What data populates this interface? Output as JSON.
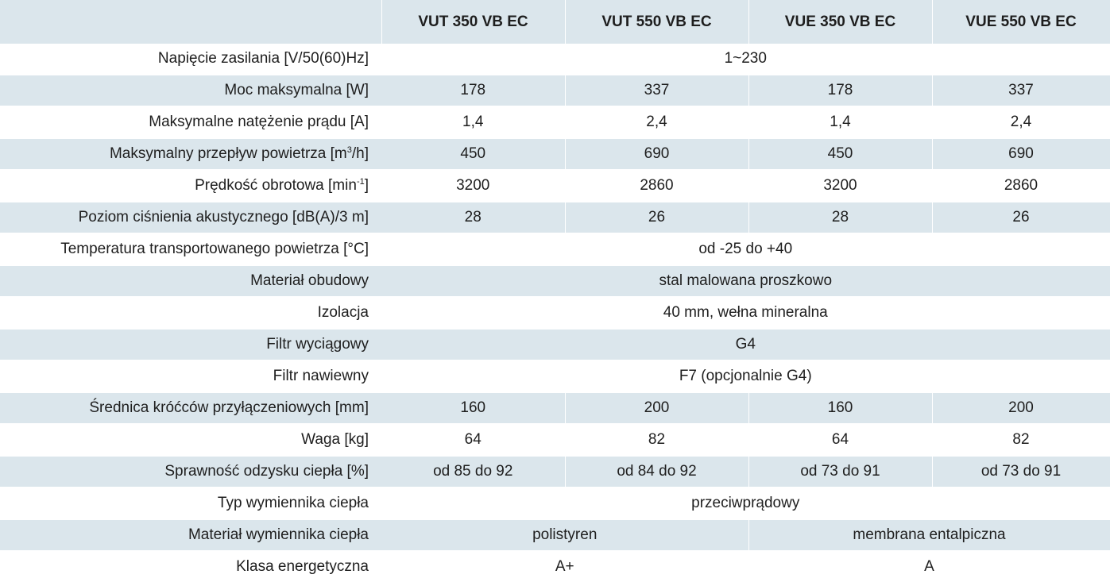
{
  "header": {
    "corner": "",
    "models": [
      "VUT 350 VB EC",
      "VUT 550 VB EC",
      "VUE 350 VB EC",
      "VUE 550 VB EC"
    ]
  },
  "rows": [
    {
      "label": "Napięcie zasilania [V/50(60)Hz]",
      "label_parts": null,
      "cells": [
        {
          "text": "1~230",
          "span": 4
        }
      ]
    },
    {
      "label": "Moc maksymalna [W]",
      "label_parts": null,
      "cells": [
        {
          "text": "178",
          "span": 1
        },
        {
          "text": "337",
          "span": 1
        },
        {
          "text": "178",
          "span": 1
        },
        {
          "text": "337",
          "span": 1
        }
      ]
    },
    {
      "label": "Maksymalne natężenie prądu [A]",
      "label_parts": null,
      "cells": [
        {
          "text": "1,4",
          "span": 1
        },
        {
          "text": "2,4",
          "span": 1
        },
        {
          "text": "1,4",
          "span": 1
        },
        {
          "text": "2,4",
          "span": 1
        }
      ]
    },
    {
      "label": null,
      "label_parts": {
        "main": "Maksymalny przepływ powietrza  [m",
        "sup": "3",
        "tail": "/h]"
      },
      "cells": [
        {
          "text": "450",
          "span": 1
        },
        {
          "text": "690",
          "span": 1
        },
        {
          "text": "450",
          "span": 1
        },
        {
          "text": "690",
          "span": 1
        }
      ]
    },
    {
      "label": null,
      "label_parts": {
        "main": "Prędkość obrotowa  [min",
        "sup": "-1",
        "tail": "]"
      },
      "cells": [
        {
          "text": "3200",
          "span": 1
        },
        {
          "text": "2860",
          "span": 1
        },
        {
          "text": "3200",
          "span": 1
        },
        {
          "text": "2860",
          "span": 1
        }
      ]
    },
    {
      "label": "Poziom ciśnienia akustycznego [dB(A)/3 m]",
      "label_parts": null,
      "cells": [
        {
          "text": "28",
          "span": 1
        },
        {
          "text": "26",
          "span": 1
        },
        {
          "text": "28",
          "span": 1
        },
        {
          "text": "26",
          "span": 1
        }
      ]
    },
    {
      "label": "Temperatura transportowanego powietrza [°C]",
      "label_parts": null,
      "cells": [
        {
          "text": "od -25 do +40",
          "span": 4
        }
      ]
    },
    {
      "label": "Materiał obudowy",
      "label_parts": null,
      "cells": [
        {
          "text": "stal malowana proszkowo",
          "span": 4
        }
      ]
    },
    {
      "label": "Izolacja",
      "label_parts": null,
      "cells": [
        {
          "text": "40 mm, wełna mineralna",
          "span": 4
        }
      ]
    },
    {
      "label": "Filtr wyciągowy",
      "label_parts": null,
      "cells": [
        {
          "text": "G4",
          "span": 4
        }
      ]
    },
    {
      "label": "Filtr nawiewny",
      "label_parts": null,
      "cells": [
        {
          "text": "F7 (opcjonalnie G4)",
          "span": 4
        }
      ]
    },
    {
      "label": "Średnica króćców przyłączeniowych [mm]",
      "label_parts": null,
      "cells": [
        {
          "text": "160",
          "span": 1
        },
        {
          "text": "200",
          "span": 1
        },
        {
          "text": "160",
          "span": 1
        },
        {
          "text": "200",
          "span": 1
        }
      ]
    },
    {
      "label": "Waga [kg]",
      "label_parts": null,
      "cells": [
        {
          "text": "64",
          "span": 1
        },
        {
          "text": "82",
          "span": 1
        },
        {
          "text": "64",
          "span": 1
        },
        {
          "text": "82",
          "span": 1
        }
      ]
    },
    {
      "label": "Sprawność odzysku ciepła [%]",
      "label_parts": null,
      "cells": [
        {
          "text": "od 85 do 92",
          "span": 1
        },
        {
          "text": "od 84 do 92",
          "span": 1
        },
        {
          "text": "od 73 do 91",
          "span": 1
        },
        {
          "text": "od 73 do 91",
          "span": 1
        }
      ]
    },
    {
      "label": "Typ wymiennika ciepła",
      "label_parts": null,
      "cells": [
        {
          "text": "przeciwprądowy",
          "span": 4
        }
      ]
    },
    {
      "label": "Materiał wymiennika ciepła",
      "label_parts": null,
      "cells": [
        {
          "text": "polistyren",
          "span": 2
        },
        {
          "text": "membrana entalpiczna",
          "span": 2
        }
      ]
    },
    {
      "label": "Klasa energetyczna",
      "label_parts": null,
      "cells": [
        {
          "text": "A+",
          "span": 2
        },
        {
          "text": "A",
          "span": 2
        }
      ]
    }
  ]
}
